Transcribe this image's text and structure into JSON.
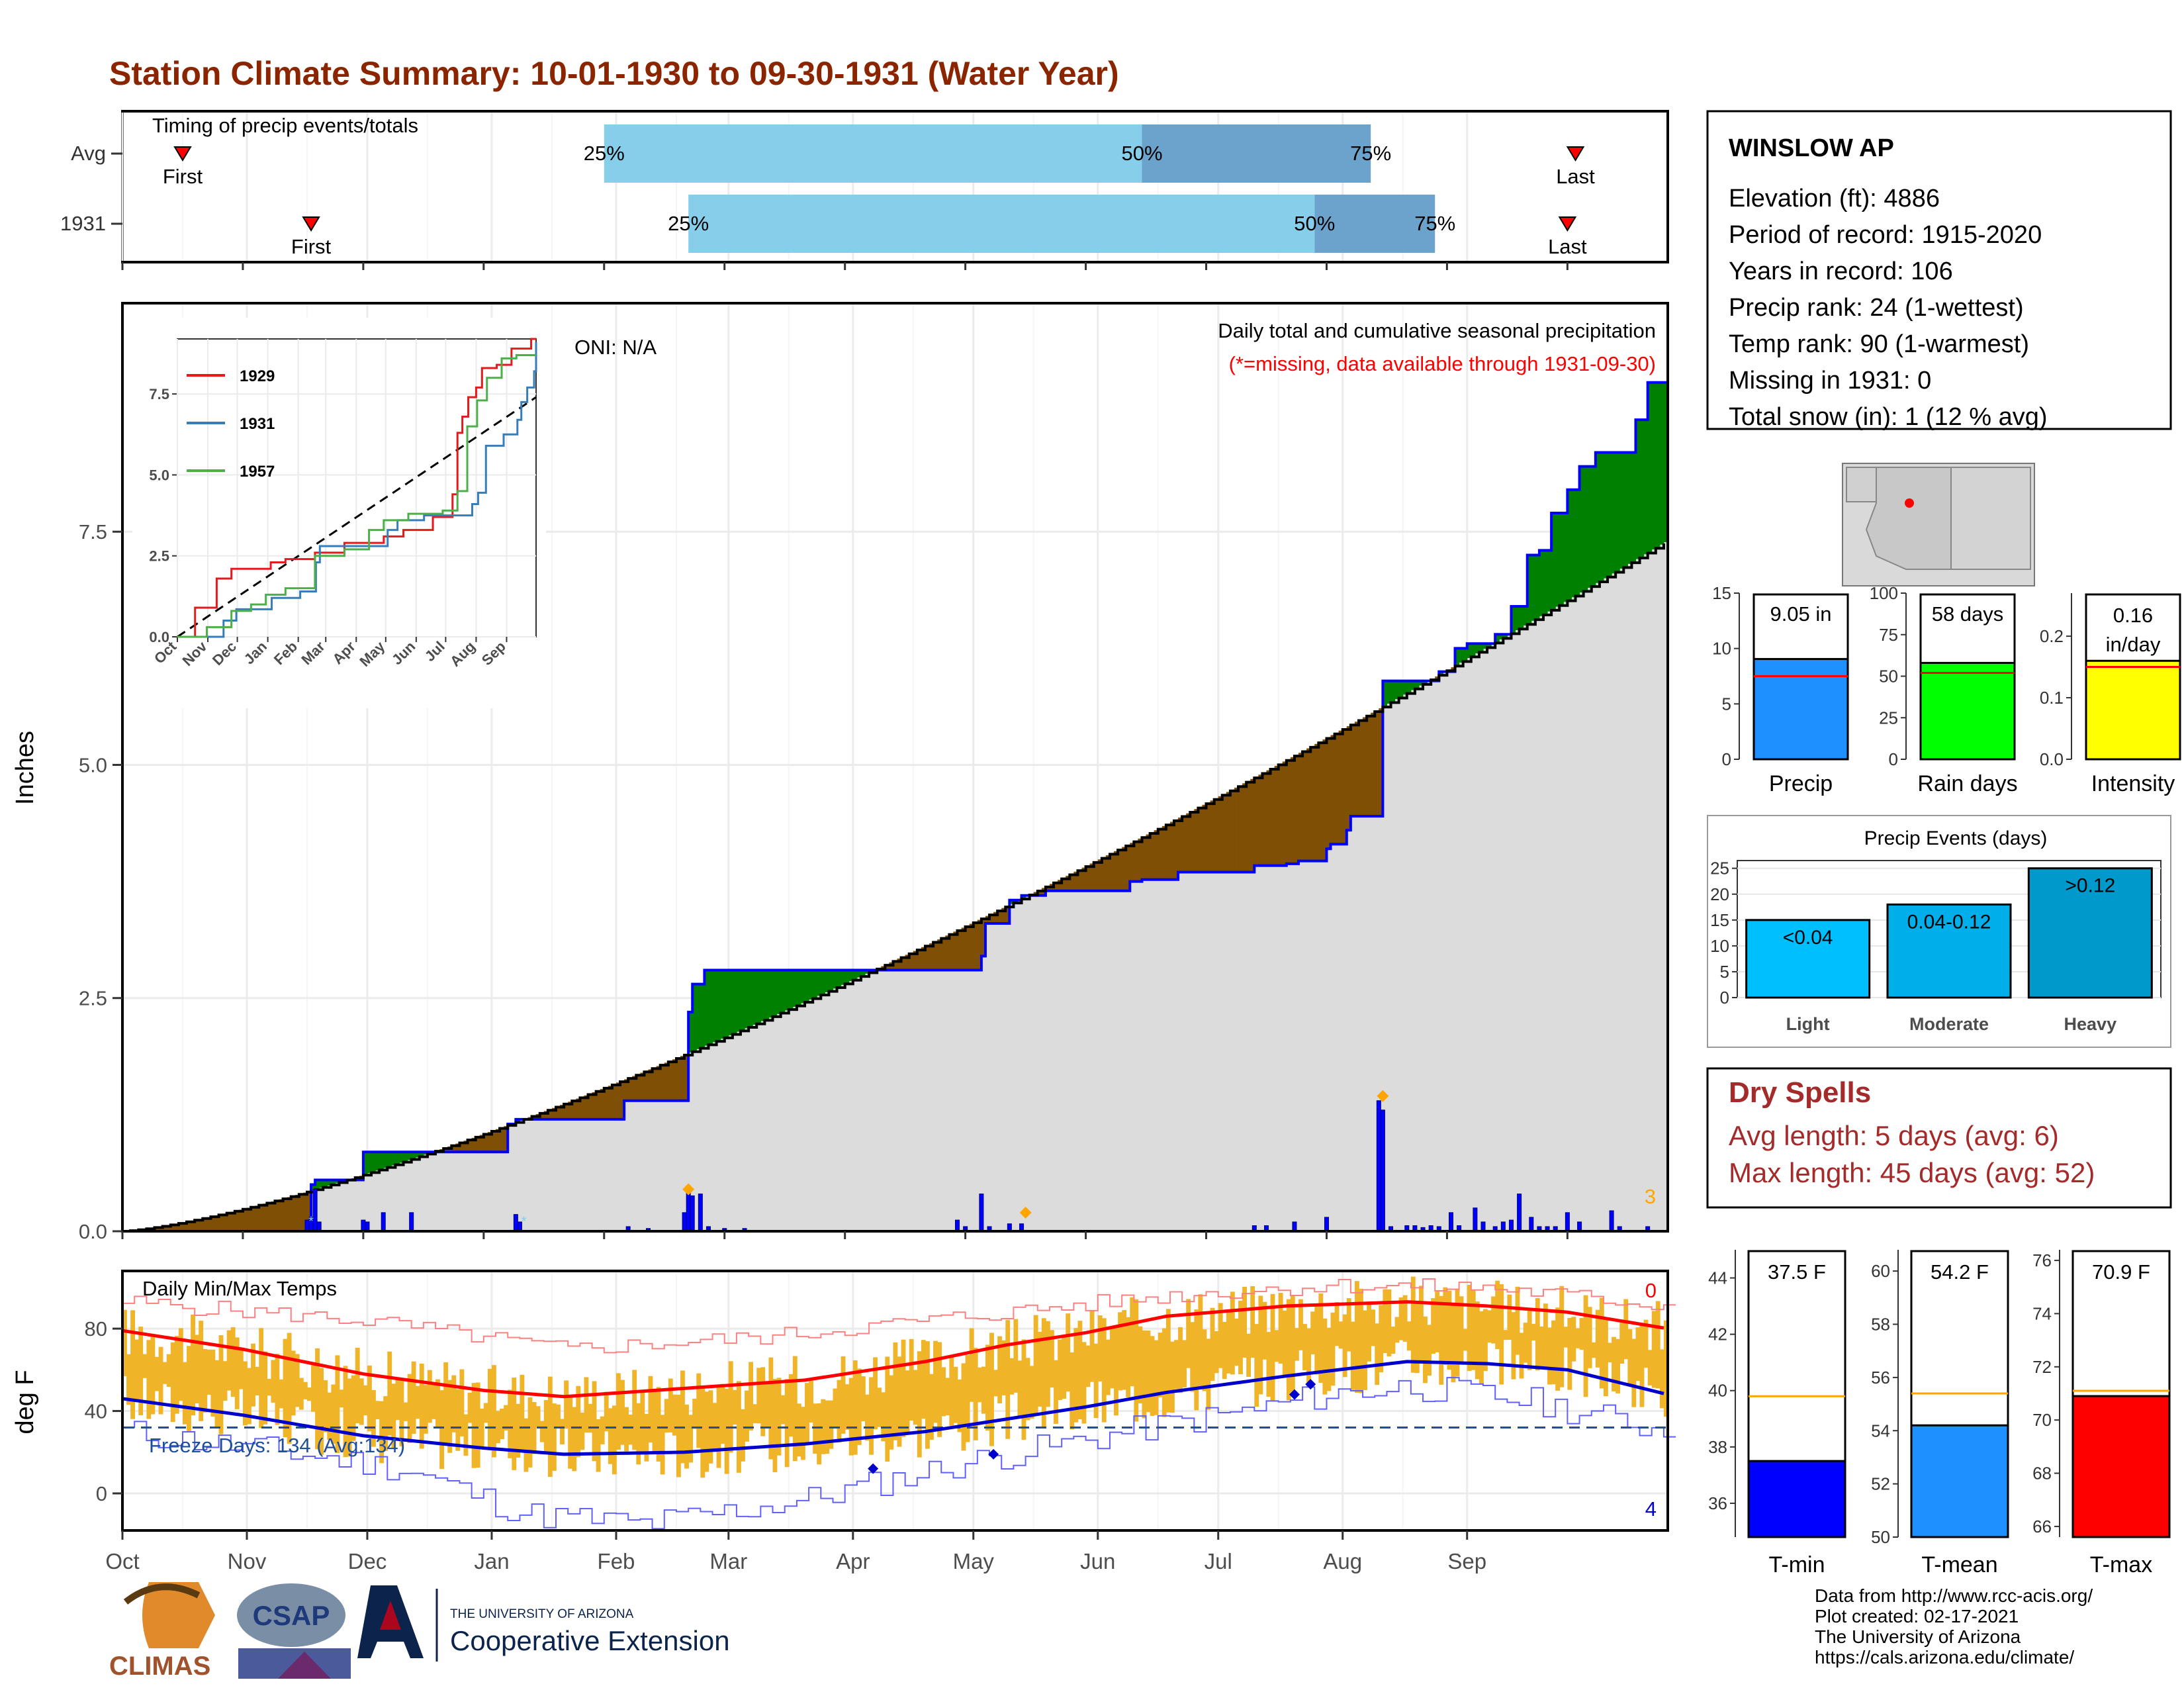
{
  "title": "Station Climate Summary: 10-01-1930 to 09-30-1931 (Water Year)",
  "colors": {
    "title": "#8b2500",
    "pct_bar_light": "#87ceeb",
    "pct_bar_dark": "#6ba3cc",
    "deficit": "#7f4f06",
    "surplus": "#008000",
    "normal_fill": "#dcdcdc",
    "daily_bar": "#0000ff",
    "temp_range": "#f0b428",
    "tmax_avg": "#ff0000",
    "tmin_avg": "#0000cc",
    "precip_bar": "#1e90ff",
    "raindays_bar": "#00ff00",
    "intensity_bar": "#ffff00",
    "events_bar": "#00a0d8",
    "dry_spells": "#a52a2a",
    "tmin_bar": "#0000ff",
    "tmean_bar": "#1e90ff",
    "tmax_bar": "#ff0000",
    "avg_line_orange": "#ffa500"
  },
  "months": [
    "Oct",
    "Nov",
    "Dec",
    "Jan",
    "Feb",
    "Mar",
    "Apr",
    "May",
    "Jun",
    "Jul",
    "Aug",
    "Sep"
  ],
  "timing": {
    "label": "Timing of precip events/totals",
    "rows": [
      {
        "label": "Avg",
        "first_day": 15,
        "first_label": "First",
        "p25_day": 120,
        "p50_day": 254,
        "p75_day": 311,
        "last_day": 362,
        "last_label": "Last",
        "p25_label": "25%",
        "p50_label": "50%",
        "p75_label": "75%"
      },
      {
        "label": "1931",
        "first_day": 47,
        "first_label": "First",
        "p25_day": 141,
        "p50_day": 297,
        "p75_day": 327,
        "last_day": 360,
        "last_label": "Last",
        "p25_label": "25%",
        "p50_label": "50%",
        "p75_label": "75%"
      }
    ]
  },
  "precip_panel": {
    "ylabel": "Inches",
    "y_ticks": [
      0.0,
      2.5,
      5.0,
      7.5
    ],
    "ylim": [
      0,
      9.95
    ],
    "oni": "ONI: N/A",
    "header": "Daily total and cumulative seasonal precipitation",
    "missing_note": "(*=missing, data available through 1931-09-30)",
    "bar_count_label": "3",
    "normal_total": 7.4,
    "observed_steps": [
      [
        0,
        0.0
      ],
      [
        47,
        0.5
      ],
      [
        48,
        0.55
      ],
      [
        60,
        0.85
      ],
      [
        96,
        1.15
      ],
      [
        98,
        1.2
      ],
      [
        125,
        1.4
      ],
      [
        141,
        2.35
      ],
      [
        142,
        2.65
      ],
      [
        145,
        2.8
      ],
      [
        214,
        2.95
      ],
      [
        215,
        3.3
      ],
      [
        221,
        3.55
      ],
      [
        224,
        3.6
      ],
      [
        230,
        3.65
      ],
      [
        251,
        3.75
      ],
      [
        254,
        3.77
      ],
      [
        263,
        3.85
      ],
      [
        282,
        3.92
      ],
      [
        290,
        3.94
      ],
      [
        293,
        3.97
      ],
      [
        300,
        4.1
      ],
      [
        301,
        4.15
      ],
      [
        305,
        4.3
      ],
      [
        306,
        4.45
      ],
      [
        314,
        5.9
      ],
      [
        315,
        5.9
      ],
      [
        328,
        6.0
      ],
      [
        332,
        6.25
      ],
      [
        335,
        6.3
      ],
      [
        342,
        6.4
      ],
      [
        346,
        6.7
      ],
      [
        350,
        7.25
      ],
      [
        353,
        7.3
      ],
      [
        356,
        7.7
      ],
      [
        360,
        7.95
      ],
      [
        363,
        8.2
      ],
      [
        367,
        8.35
      ],
      [
        377,
        8.7
      ],
      [
        380,
        9.1
      ],
      [
        385,
        9.05
      ]
    ],
    "event_diamonds": [
      [
        141,
        0.4
      ],
      [
        225,
        0.15
      ],
      [
        314,
        1.4
      ]
    ],
    "daily_bars": [
      [
        46,
        0.12
      ],
      [
        47,
        0.15
      ],
      [
        48,
        0.45
      ],
      [
        49,
        0.1
      ],
      [
        60,
        0.12
      ],
      [
        61,
        0.1
      ],
      [
        65,
        0.2
      ],
      [
        72,
        0.2
      ],
      [
        98,
        0.18
      ],
      [
        99,
        0.1
      ],
      [
        126,
        0.05
      ],
      [
        131,
        0.03
      ],
      [
        140,
        0.2
      ],
      [
        141,
        0.42
      ],
      [
        142,
        0.38
      ],
      [
        144,
        0.4
      ],
      [
        146,
        0.05
      ],
      [
        150,
        0.03
      ],
      [
        155,
        0.03
      ],
      [
        208,
        0.12
      ],
      [
        210,
        0.05
      ],
      [
        214,
        0.4
      ],
      [
        216,
        0.05
      ],
      [
        221,
        0.08
      ],
      [
        224,
        0.08
      ],
      [
        282,
        0.06
      ],
      [
        285,
        0.06
      ],
      [
        292,
        0.1
      ],
      [
        300,
        0.15
      ],
      [
        313,
        1.4
      ],
      [
        314,
        1.3
      ],
      [
        316,
        0.05
      ],
      [
        320,
        0.06
      ],
      [
        322,
        0.06
      ],
      [
        324,
        0.04
      ],
      [
        326,
        0.06
      ],
      [
        328,
        0.05
      ],
      [
        331,
        0.2
      ],
      [
        333,
        0.06
      ],
      [
        337,
        0.25
      ],
      [
        339,
        0.1
      ],
      [
        342,
        0.05
      ],
      [
        344,
        0.1
      ],
      [
        346,
        0.12
      ],
      [
        348,
        0.4
      ],
      [
        351,
        0.15
      ],
      [
        353,
        0.05
      ],
      [
        355,
        0.05
      ],
      [
        357,
        0.05
      ],
      [
        360,
        0.2
      ],
      [
        363,
        0.1
      ],
      [
        371,
        0.22
      ],
      [
        373,
        0.05
      ],
      [
        380,
        0.05
      ]
    ],
    "inset": {
      "years": [
        "1929",
        "1931",
        "1957"
      ],
      "colors": [
        "#e41a1c",
        "#377eb8",
        "#4daf4a"
      ],
      "y_ticks": [
        0.0,
        2.5,
        5.0,
        7.5
      ],
      "ylim": [
        0,
        9.2
      ],
      "series": [
        {
          "name": "1929",
          "steps": [
            [
              0,
              0.0
            ],
            [
              18,
              0.9
            ],
            [
              40,
              1.8
            ],
            [
              55,
              2.1
            ],
            [
              95,
              2.3
            ],
            [
              110,
              2.4
            ],
            [
              140,
              2.6
            ],
            [
              170,
              2.9
            ],
            [
              200,
              2.9
            ],
            [
              210,
              3.1
            ],
            [
              230,
              3.3
            ],
            [
              260,
              3.7
            ],
            [
              280,
              4.4
            ],
            [
              285,
              6.3
            ],
            [
              290,
              6.8
            ],
            [
              296,
              7.4
            ],
            [
              304,
              7.7
            ],
            [
              310,
              8.3
            ],
            [
              325,
              8.4
            ],
            [
              340,
              8.9
            ],
            [
              360,
              9.2
            ]
          ]
        },
        {
          "name": "1931",
          "steps": [
            [
              0,
              0.0
            ],
            [
              47,
              0.5
            ],
            [
              60,
              0.85
            ],
            [
              96,
              1.2
            ],
            [
              125,
              1.4
            ],
            [
              141,
              2.3
            ],
            [
              145,
              2.8
            ],
            [
              214,
              3.3
            ],
            [
              224,
              3.6
            ],
            [
              251,
              3.75
            ],
            [
              300,
              4.1
            ],
            [
              306,
              4.45
            ],
            [
              314,
              5.9
            ],
            [
              332,
              6.25
            ],
            [
              346,
              6.7
            ],
            [
              350,
              7.25
            ],
            [
              356,
              7.7
            ],
            [
              363,
              8.2
            ],
            [
              377,
              8.7
            ],
            [
              380,
              9.1
            ],
            [
              385,
              9.05
            ]
          ]
        },
        {
          "name": "1957",
          "steps": [
            [
              0,
              0.0
            ],
            [
              30,
              0.3
            ],
            [
              55,
              0.8
            ],
            [
              75,
              1.0
            ],
            [
              90,
              1.3
            ],
            [
              110,
              1.5
            ],
            [
              140,
              2.5
            ],
            [
              170,
              2.7
            ],
            [
              195,
              3.3
            ],
            [
              210,
              3.6
            ],
            [
              235,
              3.8
            ],
            [
              270,
              3.9
            ],
            [
              285,
              4.5
            ],
            [
              295,
              6.5
            ],
            [
              305,
              7.3
            ],
            [
              315,
              8.0
            ],
            [
              330,
              8.6
            ],
            [
              345,
              8.7
            ],
            [
              365,
              8.7
            ]
          ]
        }
      ]
    }
  },
  "temp_panel": {
    "ylabel": "deg F",
    "title": "Daily Min/Max Temps",
    "y_ticks": [
      0,
      40,
      80
    ],
    "ylim": [
      -18,
      108
    ],
    "freeze_label": "Freeze Days: 134 (Avg:134)",
    "freeze_line": 32,
    "count_hot": "0",
    "count_cold": "4",
    "tmax_avg_knots": [
      [
        0,
        79
      ],
      [
        30,
        70
      ],
      [
        60,
        58
      ],
      [
        90,
        50
      ],
      [
        110,
        47
      ],
      [
        140,
        51
      ],
      [
        170,
        55
      ],
      [
        200,
        64
      ],
      [
        220,
        72
      ],
      [
        240,
        78
      ],
      [
        260,
        86
      ],
      [
        290,
        91
      ],
      [
        320,
        93
      ],
      [
        340,
        91
      ],
      [
        360,
        88
      ],
      [
        385,
        80
      ]
    ],
    "tmin_avg_knots": [
      [
        0,
        46
      ],
      [
        30,
        38
      ],
      [
        60,
        28
      ],
      [
        90,
        22
      ],
      [
        110,
        19
      ],
      [
        140,
        20
      ],
      [
        170,
        24
      ],
      [
        200,
        30
      ],
      [
        220,
        36
      ],
      [
        240,
        42
      ],
      [
        260,
        49
      ],
      [
        290,
        57
      ],
      [
        320,
        64
      ],
      [
        340,
        63
      ],
      [
        360,
        60
      ],
      [
        385,
        48
      ]
    ],
    "record_hi_knots": [
      [
        0,
        93
      ],
      [
        60,
        84
      ],
      [
        110,
        70
      ],
      [
        160,
        76
      ],
      [
        220,
        88
      ],
      [
        260,
        96
      ],
      [
        300,
        101
      ],
      [
        340,
        100
      ],
      [
        385,
        91
      ]
    ],
    "record_lo_knots": [
      [
        0,
        30
      ],
      [
        40,
        20
      ],
      [
        70,
        12
      ],
      [
        100,
        -10
      ],
      [
        130,
        -15
      ],
      [
        170,
        -3
      ],
      [
        210,
        15
      ],
      [
        250,
        30
      ],
      [
        280,
        40
      ],
      [
        300,
        48
      ],
      [
        320,
        52
      ],
      [
        350,
        45
      ],
      [
        385,
        30
      ]
    ],
    "cold_diamonds": [
      [
        187,
        12
      ],
      [
        217,
        19
      ],
      [
        292,
        48
      ],
      [
        296,
        53
      ]
    ]
  },
  "station": {
    "name": "WINSLOW AP",
    "lines": [
      "Elevation (ft): 4886",
      "Period of record: 1915-2020",
      "Years in record: 106",
      "Precip rank: 24 (1-wettest)",
      "Temp rank: 90 (1-warmest)",
      "Missing in 1931: 0",
      "Total snow (in): 1 (12 % avg)"
    ]
  },
  "summary_bars": [
    {
      "name": "Precip",
      "value": 9.05,
      "label": "9.05 in",
      "avg": 7.5,
      "ticks": [
        0,
        5,
        10,
        15
      ],
      "ylim": [
        0,
        15
      ]
    },
    {
      "name": "Rain days",
      "value": 58,
      "label": "58 days",
      "avg": 52,
      "ticks": [
        0,
        25,
        50,
        75,
        100
      ],
      "ylim": [
        0,
        100
      ]
    },
    {
      "name": "Intensity",
      "value": 0.16,
      "label1": "0.16",
      "label2": "in/day",
      "avg": 0.15,
      "ticks": [
        0.0,
        0.1,
        0.2
      ],
      "ylim": [
        0,
        0.27
      ]
    }
  ],
  "events": {
    "title": "Precip Events (days)",
    "categories": [
      "Light",
      "Moderate",
      "Heavy"
    ],
    "values": [
      15,
      18,
      25
    ],
    "value_labels": [
      "<0.04",
      "0.04-0.12",
      ">0.12"
    ],
    "ticks": [
      0,
      5,
      10,
      15,
      20,
      25
    ],
    "ylim": [
      0,
      26.5
    ]
  },
  "dry_spells": {
    "title": "Dry Spells",
    "lines": [
      "Avg length: 5 days (avg: 6)",
      "Max length: 45 days (avg: 52)"
    ]
  },
  "temp_bars": [
    {
      "name": "T-min",
      "value": 37.5,
      "label": "37.5 F",
      "avg": 39.8,
      "ticks": [
        36,
        38,
        40,
        42,
        44
      ],
      "ylim": [
        34.8,
        45
      ]
    },
    {
      "name": "T-mean",
      "value": 54.2,
      "label": "54.2 F",
      "avg": 55.4,
      "ticks": [
        50,
        52,
        54,
        56,
        58,
        60
      ],
      "ylim": [
        50,
        60.8
      ]
    },
    {
      "name": "T-max",
      "value": 70.9,
      "label": "70.9 F",
      "avg": 71.1,
      "ticks": [
        66,
        68,
        70,
        72,
        74,
        76
      ],
      "ylim": [
        65.6,
        76.4
      ]
    }
  ],
  "footer": {
    "logo_climas": "CLIMAS",
    "logo_csap": "CSAP",
    "ua_small": "THE UNIVERSITY OF ARIZONA",
    "ua_big": "Cooperative Extension",
    "credits": [
      "Data from http://www.rcc-acis.org/",
      "Plot created: 02-17-2021",
      "The University of Arizona",
      "https://cals.arizona.edu/climate/"
    ]
  }
}
